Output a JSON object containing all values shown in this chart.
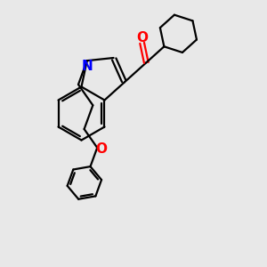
{
  "bg_color": "#e8e8e8",
  "line_color": "#000000",
  "bond_width": 1.6,
  "N_color": "#0000ff",
  "O_color": "#ff0000",
  "font_size": 10,
  "figsize": [
    3.0,
    3.0
  ],
  "dpi": 100,
  "xlim": [
    0,
    10
  ],
  "ylim": [
    0,
    10
  ]
}
